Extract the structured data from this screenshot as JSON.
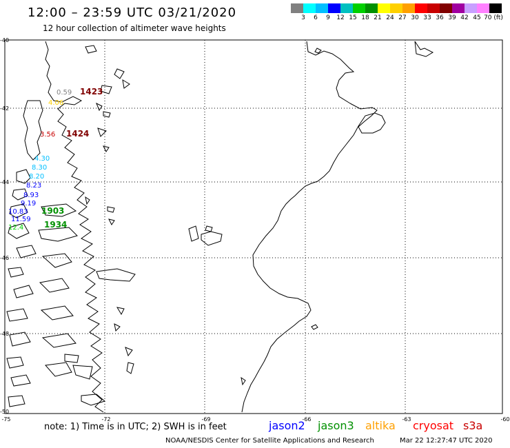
{
  "header": {
    "title": "12:00 – 23:59 UTC 03/21/2020",
    "subtitle": "12 hour collection of altimeter wave heights"
  },
  "legend": {
    "colors": [
      "#808080",
      "#00ffff",
      "#00bfff",
      "#0000ff",
      "#00c0c0",
      "#00d000",
      "#009000",
      "#ffff00",
      "#ffd000",
      "#ffa000",
      "#ff0000",
      "#c80000",
      "#800000",
      "#a000a0",
      "#c8a0ff",
      "#ff80ff",
      "#000000"
    ],
    "labels": [
      "3",
      "6",
      "9",
      "12",
      "15",
      "18",
      "21",
      "24",
      "27",
      "30",
      "33",
      "36",
      "39",
      "42",
      "45",
      "70 (ft)"
    ]
  },
  "map": {
    "lat_labels": [
      "-40",
      "-42",
      "-44",
      "-46",
      "-48",
      "-50"
    ],
    "lon_labels": [
      "-75",
      "-72",
      "-69",
      "-66",
      "-63",
      "-60"
    ],
    "observations": [
      {
        "text": "0.59",
        "color": "#808080"
      },
      {
        "text": "1423",
        "color": "#800000"
      },
      {
        "text": "4.06",
        "color": "#ffd000"
      },
      {
        "text": "3.56",
        "color": "#c80000"
      },
      {
        "text": "1424",
        "color": "#800000"
      },
      {
        "text": "4.30",
        "color": "#00bfff"
      },
      {
        "text": "8.30",
        "color": "#00bfff"
      },
      {
        "text": "8.20",
        "color": "#00bfff"
      },
      {
        "text": "8.23",
        "color": "#0000ff"
      },
      {
        "text": "8.93",
        "color": "#0000ff"
      },
      {
        "text": "9.19",
        "color": "#0000ff"
      },
      {
        "text": "10.83",
        "color": "#0000ff"
      },
      {
        "text": "1903",
        "color": "#009000"
      },
      {
        "text": "11.59",
        "color": "#0000ff"
      },
      {
        "text": "12.4",
        "color": "#00d000"
      },
      {
        "text": "1934",
        "color": "#009000"
      }
    ]
  },
  "footer": {
    "note": "note:  1) Time is in UTC;  2) SWH is in feet",
    "satellites": [
      {
        "name": "jason2",
        "color": "#0000ff"
      },
      {
        "name": "jason3",
        "color": "#009000"
      },
      {
        "name": "altika",
        "color": "#ffa000"
      },
      {
        "name": "cryosat",
        "color": "#ff0000"
      },
      {
        "name": "s3a",
        "color": "#c80000"
      }
    ],
    "credit": "NOAA/NESDIS Center for Satellite Applications and Research",
    "timestamp": "Mar 22 12:27:47 UTC 2020"
  }
}
